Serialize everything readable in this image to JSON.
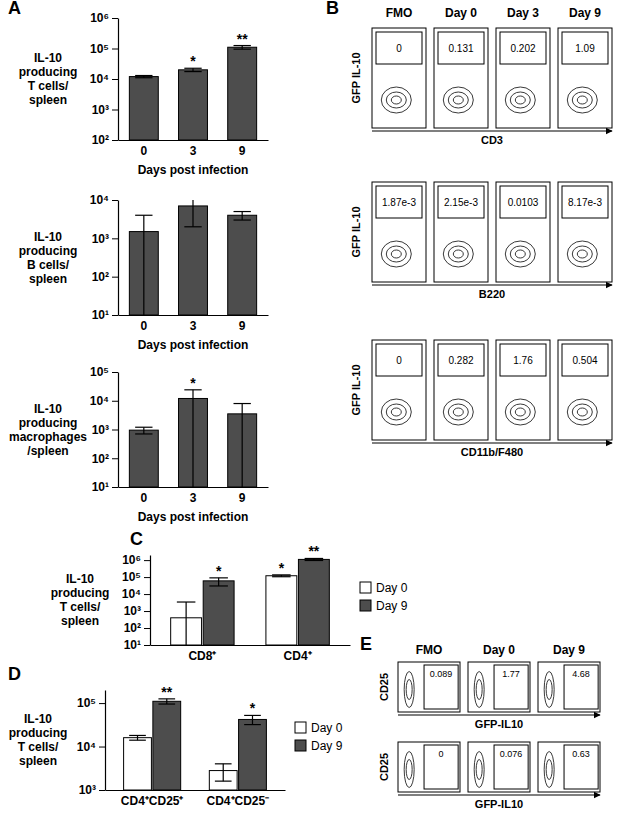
{
  "chart_data": [
    {
      "panel": "A",
      "type": "bar",
      "log": "y",
      "y_label": [
        "IL-10",
        "producing",
        "T cells/",
        "spleen"
      ],
      "x_label": "Days post infection",
      "categories": [
        "0",
        "3",
        "9"
      ],
      "series": [
        {
          "color": "#4d4d4d",
          "values": [
            12000,
            20000,
            110000
          ],
          "errors": [
            1000,
            2500,
            15000
          ],
          "stars": [
            null,
            "*",
            "**"
          ]
        }
      ],
      "ylim": [
        100,
        1000000
      ],
      "yticks": [
        {
          "value": 100,
          "label": "10²"
        },
        {
          "value": 1000,
          "label": "10³"
        },
        {
          "value": 10000,
          "label": "10⁴"
        },
        {
          "value": 100000,
          "label": "10⁵"
        },
        {
          "value": 1000000,
          "label": "10⁶"
        }
      ]
    },
    {
      "type": "bar",
      "log": "y",
      "y_label": [
        "IL-10",
        "producing",
        "B cells/",
        "spleen"
      ],
      "x_label": "Days post infection",
      "categories": [
        "0",
        "3",
        "9"
      ],
      "series": [
        {
          "color": "#4d4d4d",
          "values": [
            1500,
            7000,
            4000
          ],
          "errors": [
            2500,
            5000,
            1000
          ]
        }
      ],
      "ylim": [
        10,
        10000
      ],
      "yticks": [
        {
          "value": 10,
          "label": "10¹"
        },
        {
          "value": 100,
          "label": "10²"
        },
        {
          "value": 1000,
          "label": "10³"
        },
        {
          "value": 10000,
          "label": "10⁴"
        }
      ]
    },
    {
      "type": "bar",
      "log": "y",
      "y_label": [
        "IL-10",
        "producing",
        "macrophages",
        "/spleen"
      ],
      "x_label": "Days post infection",
      "categories": [
        "0",
        "3",
        "9"
      ],
      "series": [
        {
          "color": "#4d4d4d",
          "values": [
            950,
            12000,
            3500
          ],
          "errors": [
            250,
            12000,
            4500
          ],
          "stars": [
            null,
            "*",
            null
          ]
        }
      ],
      "ylim": [
        10,
        100000
      ],
      "yticks": [
        {
          "value": 10,
          "label": "10¹"
        },
        {
          "value": 100,
          "label": "10²"
        },
        {
          "value": 1000,
          "label": "10³"
        },
        {
          "value": 10000,
          "label": "10⁴"
        },
        {
          "value": 100000,
          "label": "10⁵"
        }
      ]
    },
    {
      "panel": "B",
      "type": "flow",
      "columns": [
        "FMO",
        "Day 0",
        "Day 3",
        "Day 9"
      ],
      "rows": [
        {
          "y_label": "GFP IL-10",
          "x_label": "CD3",
          "gates": [
            0,
            0.131,
            0.202,
            1.09
          ]
        },
        {
          "y_label": "GFP IL-10",
          "x_label": "B220",
          "gates": [
            {
              "value": 0.00187,
              "label": "1.87e-3"
            },
            {
              "value": 0.00215,
              "label": "2.15e-3"
            },
            0.0103,
            {
              "value": 0.00817,
              "label": "8.17e-3"
            }
          ]
        },
        {
          "y_label": "GFP IL-10",
          "x_label": "CD11b/F480",
          "gates": [
            0,
            0.282,
            1.76,
            0.504
          ]
        }
      ]
    },
    {
      "panel": "C",
      "type": "bar",
      "log": "y",
      "legend": "right",
      "y_label": [
        "IL-10",
        "producing",
        "T cells/",
        "spleen"
      ],
      "categories": [
        "CD8⁺",
        "CD4⁺"
      ],
      "series": [
        {
          "name": "Day 0",
          "color": "#ffffff",
          "values": [
            400,
            120000
          ],
          "errors": [
            3000,
            15000
          ],
          "stars": [
            null,
            "*"
          ]
        },
        {
          "name": "Day 9",
          "color": "#4d4d4d",
          "values": [
            60000,
            1100000
          ],
          "errors": [
            30000,
            150000
          ],
          "stars": [
            "*",
            "**"
          ]
        }
      ],
      "ylim": [
        10,
        2000000
      ],
      "yticks": [
        {
          "value": 10,
          "label": "10¹"
        },
        {
          "value": 100,
          "label": "10²"
        },
        {
          "value": 1000,
          "label": "10³"
        },
        {
          "value": 10000,
          "label": "10⁴"
        },
        {
          "value": 100000,
          "label": "10⁵"
        },
        {
          "value": 1000000,
          "label": "10⁶"
        }
      ]
    },
    {
      "panel": "D",
      "type": "bar",
      "log": "y",
      "legend": "right",
      "y_label": [
        "IL-10",
        "producing",
        "T cells/",
        "spleen"
      ],
      "categories": [
        "CD4⁺CD25⁺",
        "CD4⁺CD25⁻"
      ],
      "series": [
        {
          "name": "Day 0",
          "color": "#ffffff",
          "values": [
            16000,
            2800
          ],
          "errors": [
            2000,
            1200
          ]
        },
        {
          "name": "Day 9",
          "color": "#4d4d4d",
          "values": [
            110000,
            42000
          ],
          "errors": [
            15000,
            10000
          ],
          "stars": [
            "**",
            "*"
          ]
        }
      ],
      "ylim": [
        1000,
        200000
      ],
      "yticks": [
        {
          "value": 1000,
          "label": "10³"
        },
        {
          "value": 10000,
          "label": "10⁴"
        },
        {
          "value": 100000,
          "label": "10⁵"
        }
      ]
    },
    {
      "panel": "E",
      "type": "flow",
      "columns": [
        "FMO",
        "Day 0",
        "Day 9"
      ],
      "rows": [
        {
          "y_label": "CD25",
          "x_label": "GFP-IL10",
          "gates": [
            0.089,
            1.77,
            4.68
          ]
        },
        {
          "y_label": "CD25",
          "x_label": "GFP-IL10",
          "gates": [
            0,
            0.076,
            0.63
          ]
        }
      ]
    }
  ]
}
